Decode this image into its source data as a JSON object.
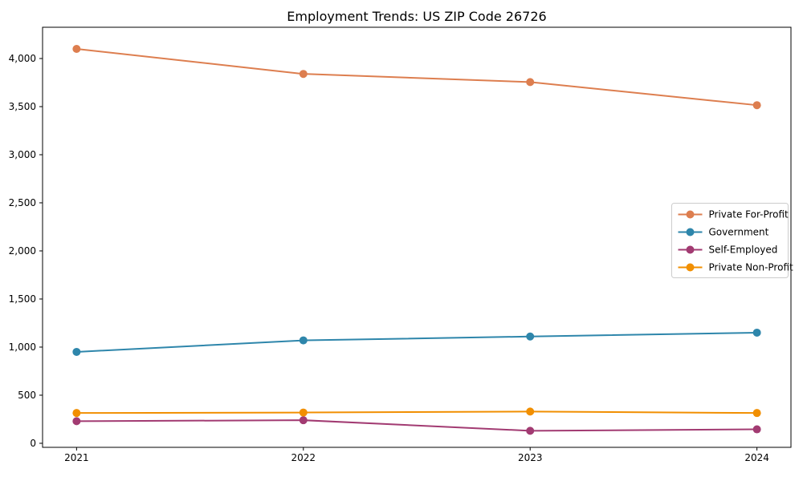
{
  "chart_data": {
    "type": "line",
    "title": "Employment Trends: US ZIP Code 26726",
    "xlabel": "",
    "ylabel": "",
    "x": [
      2021,
      2022,
      2023,
      2024
    ],
    "x_tick_labels": [
      "2021",
      "2022",
      "2023",
      "2024"
    ],
    "y_ticks": [
      0,
      500,
      1000,
      1500,
      2000,
      2500,
      3000,
      3500,
      4000
    ],
    "y_tick_labels": [
      "0",
      "500",
      "1,000",
      "1,500",
      "2,000",
      "2,500",
      "3,000",
      "3,500",
      "4,000"
    ],
    "xlim": [
      2020.85,
      2024.15
    ],
    "ylim": [
      -42,
      4325
    ],
    "grid": false,
    "legend_position": "center right",
    "background_color": "#ffffff",
    "axes_edge_color": "#000000",
    "legend_border_color": "#cccccc",
    "marker": "o",
    "series": [
      {
        "name": "Private For-Profit",
        "color": "#DD7E4F",
        "values": [
          4100,
          3840,
          3755,
          3515
        ]
      },
      {
        "name": "Government",
        "color": "#2E86AB",
        "values": [
          950,
          1070,
          1110,
          1150
        ]
      },
      {
        "name": "Self-Employed",
        "color": "#A23B72",
        "values": [
          230,
          240,
          130,
          145
        ]
      },
      {
        "name": "Private Non-Profit",
        "color": "#F18F01",
        "values": [
          315,
          320,
          330,
          315
        ]
      }
    ]
  }
}
